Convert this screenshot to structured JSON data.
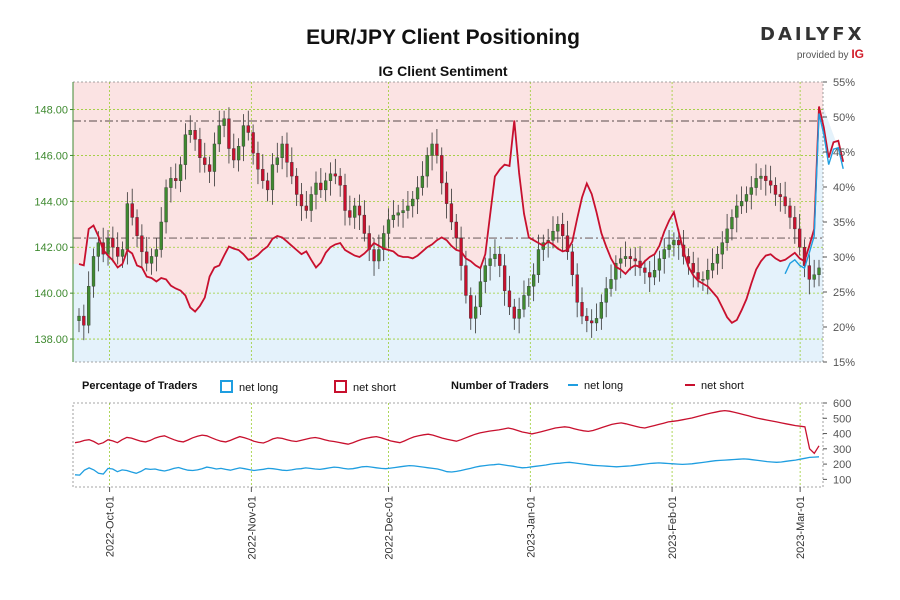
{
  "header": {
    "title": "EUR/JPY Client Positioning",
    "subtitle": "IG Client Sentiment",
    "logo_word": "DAILYFX",
    "logo_sub": "provided by",
    "logo_brand": "IG"
  },
  "legend": {
    "pct_title": "Percentage of Traders",
    "pct_long": "net long",
    "pct_short": "net short",
    "num_title": "Number of Traders",
    "num_long": "net long",
    "num_short": "net short"
  },
  "colors": {
    "long": "#1f9ee0",
    "short": "#c8102e",
    "long_fill": "#e4f2fb",
    "short_fill": "#fbe3e3",
    "candle_up": "#3f8a30",
    "candle_down": "#c8102e",
    "axis_left": "#3f8a30",
    "grid": "#9acd32"
  },
  "chart_data": [
    {
      "type": "candlestick",
      "title": "IG Client Sentiment",
      "x_ticks": [
        "2022-Oct-01",
        "2022-Nov-01",
        "2022-Dec-01",
        "2023-Jan-01",
        "2023-Feb-01",
        "2023-Mar-01"
      ],
      "x_range_days": [
        0,
        164
      ],
      "tick_days": [
        8,
        39,
        69,
        100,
        131,
        159
      ],
      "price_axis": {
        "ticks": [
          138,
          140,
          142,
          144,
          146,
          148
        ],
        "ylim": [
          137,
          149.2
        ]
      },
      "percent_axis": {
        "ticks": [
          15,
          20,
          25,
          30,
          35,
          40,
          45,
          50,
          55
        ],
        "ylim": [
          15,
          55
        ]
      },
      "reference_lines": [
        147.5,
        142.4
      ],
      "close": [
        139.0,
        138.6,
        140.3,
        141.6,
        142.2,
        141.7,
        142.4,
        142.0,
        141.6,
        141.9,
        143.9,
        143.3,
        142.5,
        141.8,
        141.3,
        141.6,
        141.9,
        143.1,
        144.6,
        145.0,
        144.9,
        145.6,
        146.9,
        147.1,
        146.7,
        145.9,
        145.6,
        145.3,
        146.5,
        147.3,
        147.6,
        146.3,
        145.8,
        146.4,
        147.3,
        147.0,
        146.1,
        145.4,
        144.9,
        144.5,
        145.6,
        145.9,
        146.5,
        145.7,
        145.1,
        144.3,
        143.8,
        143.6,
        144.3,
        144.8,
        144.5,
        144.9,
        145.2,
        145.1,
        144.7,
        143.6,
        143.3,
        143.8,
        143.4,
        142.6,
        141.9,
        141.4,
        141.9,
        142.6,
        143.2,
        143.4,
        143.5,
        143.6,
        143.8,
        144.1,
        144.6,
        145.1,
        146.0,
        146.5,
        146.0,
        144.8,
        143.9,
        143.1,
        142.4,
        141.2,
        139.9,
        138.9,
        139.4,
        140.5,
        141.2,
        141.5,
        141.7,
        141.2,
        140.1,
        139.4,
        138.9,
        139.3,
        139.9,
        140.3,
        140.8,
        141.9,
        142.2,
        142.3,
        142.7,
        143.0,
        142.5,
        141.8,
        140.8,
        139.6,
        139.0,
        138.8,
        138.7,
        138.9,
        139.6,
        140.2,
        140.6,
        141.3,
        141.5,
        141.6,
        141.5,
        141.4,
        141.1,
        140.9,
        140.7,
        141.0,
        141.5,
        141.9,
        142.1,
        142.3,
        142.1,
        141.6,
        141.3,
        140.9,
        140.6,
        140.6,
        141.0,
        141.3,
        141.7,
        142.2,
        142.8,
        143.3,
        143.8,
        144.0,
        144.3,
        144.6,
        145.0,
        145.1,
        144.9,
        144.7,
        144.3,
        144.2,
        143.8,
        143.3,
        142.8,
        142.0,
        141.2,
        140.6,
        140.8,
        141.1
      ],
      "net_short_pct": [
        29.0,
        28.8,
        34.0,
        34.5,
        33.0,
        31.0,
        30.2,
        29.5,
        28.5,
        29.0,
        31.0,
        30.5,
        28.8,
        28.5,
        27.2,
        27.0,
        26.5,
        27.0,
        26.8,
        25.9,
        25.5,
        25.2,
        24.5,
        22.8,
        22.2,
        23.0,
        24.2,
        27.2,
        28.5,
        28.8,
        30.2,
        31.5,
        31.2,
        31.0,
        30.4,
        29.6,
        29.8,
        30.3,
        31.0,
        31.5,
        32.6,
        33.0,
        32.8,
        32.2,
        31.6,
        31.0,
        30.4,
        30.8,
        29.6,
        28.5,
        29.2,
        30.6,
        31.4,
        31.8,
        32.0,
        31.0,
        30.6,
        30.2,
        30.0,
        30.5,
        31.2,
        32.0,
        31.6,
        31.2,
        31.0,
        30.8,
        30.2,
        30.0,
        30.0,
        29.8,
        30.2,
        30.8,
        31.4,
        31.8,
        32.4,
        32.8,
        32.4,
        31.6,
        31.0,
        30.8,
        29.8,
        29.4,
        28.8,
        28.4,
        30.4,
        36.0,
        41.5,
        42.5,
        43.2,
        43.0,
        49.5,
        42.0,
        36.2,
        32.8,
        32.4,
        32.0,
        31.6,
        32.2,
        31.8,
        31.2,
        30.8,
        31.0,
        32.2,
        35.5,
        38.5,
        40.5,
        39.0,
        36.4,
        33.4,
        31.5,
        29.8,
        28.6,
        28.2,
        27.6,
        28.4,
        28.8,
        28.6,
        29.4,
        30.0,
        30.4,
        31.6,
        33.6,
        35.2,
        36.4,
        33.6,
        30.8,
        28.6,
        27.4,
        26.6,
        26.2,
        25.8,
        25.0,
        24.2,
        22.8,
        21.4,
        20.6,
        21.0,
        22.4,
        24.0,
        26.2,
        28.2,
        29.4,
        30.2,
        30.4,
        29.8,
        29.4,
        29.6,
        30.1,
        30.6,
        29.8,
        29.4,
        31.6,
        34.0,
        51.5,
        48.5,
        44.2,
        46.4,
        46.6,
        43.6
      ],
      "series_names": [
        "net long",
        "net short"
      ]
    },
    {
      "type": "line",
      "title": "Number of Traders",
      "y_axis": {
        "ticks": [
          100,
          200,
          300,
          400,
          500,
          600
        ],
        "ylim": [
          50,
          600
        ]
      },
      "net_long": [
        130,
        128,
        160,
        175,
        162,
        140,
        135,
        172,
        168,
        150,
        162,
        158,
        148,
        140,
        152,
        170,
        165,
        168,
        160,
        155,
        162,
        172,
        178,
        168,
        160,
        158,
        162,
        170,
        180,
        175,
        168,
        172,
        165,
        160,
        168,
        175,
        170,
        164,
        158,
        162,
        166,
        172,
        170,
        165,
        160,
        158,
        162,
        168,
        170,
        175,
        172,
        168,
        165,
        170,
        175,
        180,
        178,
        172,
        168,
        170,
        176,
        182,
        184,
        180,
        176,
        172,
        170,
        174,
        178,
        182,
        186,
        190,
        188,
        184,
        180,
        176,
        172,
        168,
        160,
        150,
        148,
        152,
        158,
        165,
        172,
        180,
        186,
        190,
        194,
        196,
        200,
        195,
        190,
        186,
        180,
        176,
        178,
        182,
        186,
        190,
        194,
        200,
        204,
        206,
        210,
        212,
        208,
        204,
        200,
        196,
        192,
        190,
        188,
        186,
        184,
        182,
        184,
        186,
        188,
        192,
        196,
        200,
        204,
        206,
        208,
        206,
        204,
        202,
        200,
        198,
        200,
        202,
        206,
        210,
        214,
        218,
        222,
        224,
        226,
        228,
        230,
        232,
        234,
        232,
        228,
        224,
        220,
        216,
        214,
        212,
        214,
        218,
        222,
        226,
        232,
        238,
        244,
        246,
        248
      ],
      "net_short": [
        340,
        345,
        355,
        360,
        348,
        330,
        340,
        360,
        352,
        340,
        360,
        375,
        370,
        360,
        350,
        345,
        355,
        370,
        380,
        385,
        372,
        360,
        350,
        345,
        358,
        372,
        382,
        390,
        385,
        372,
        360,
        350,
        345,
        355,
        368,
        380,
        372,
        362,
        350,
        342,
        338,
        350,
        365,
        372,
        368,
        360,
        352,
        348,
        355,
        362,
        370,
        374,
        368,
        360,
        352,
        348,
        342,
        336,
        330,
        340,
        352,
        362,
        370,
        376,
        380,
        372,
        362,
        352,
        346,
        340,
        352,
        366,
        378,
        386,
        392,
        396,
        390,
        380,
        370,
        362,
        356,
        350,
        360,
        372,
        384,
        396,
        404,
        410,
        416,
        420,
        424,
        430,
        436,
        430,
        420,
        410,
        404,
        398,
        404,
        412,
        420,
        428,
        436,
        440,
        444,
        440,
        432,
        424,
        418,
        414,
        420,
        430,
        440,
        450,
        460,
        466,
        470,
        464,
        456,
        448,
        440,
        436,
        444,
        452,
        460,
        468,
        476,
        480,
        484,
        490,
        496,
        502,
        510,
        518,
        526,
        534,
        540,
        546,
        550,
        546,
        540,
        532,
        524,
        516,
        508,
        500,
        494,
        488,
        482,
        476,
        470,
        464,
        458,
        452,
        448,
        444,
        300,
        270,
        320
      ]
    }
  ]
}
